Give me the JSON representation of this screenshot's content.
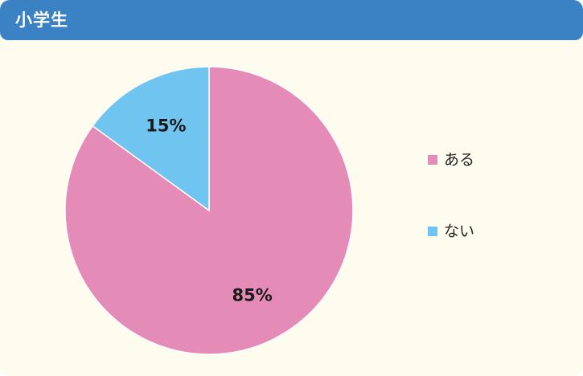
{
  "header": {
    "title": "小学生"
  },
  "colors": {
    "header_bg": "#3a82c4",
    "card_bg": "#fefcee",
    "series_pink": "#e58bb7",
    "series_blue": "#6fc4f0"
  },
  "chart_data": {
    "type": "pie",
    "title": "",
    "legend_position": "right",
    "slices": [
      {
        "label": "ある",
        "value": 85,
        "display": "85%",
        "color": "#e58bb7"
      },
      {
        "label": "ない",
        "value": 15,
        "display": "15%",
        "color": "#6fc4f0"
      }
    ]
  }
}
